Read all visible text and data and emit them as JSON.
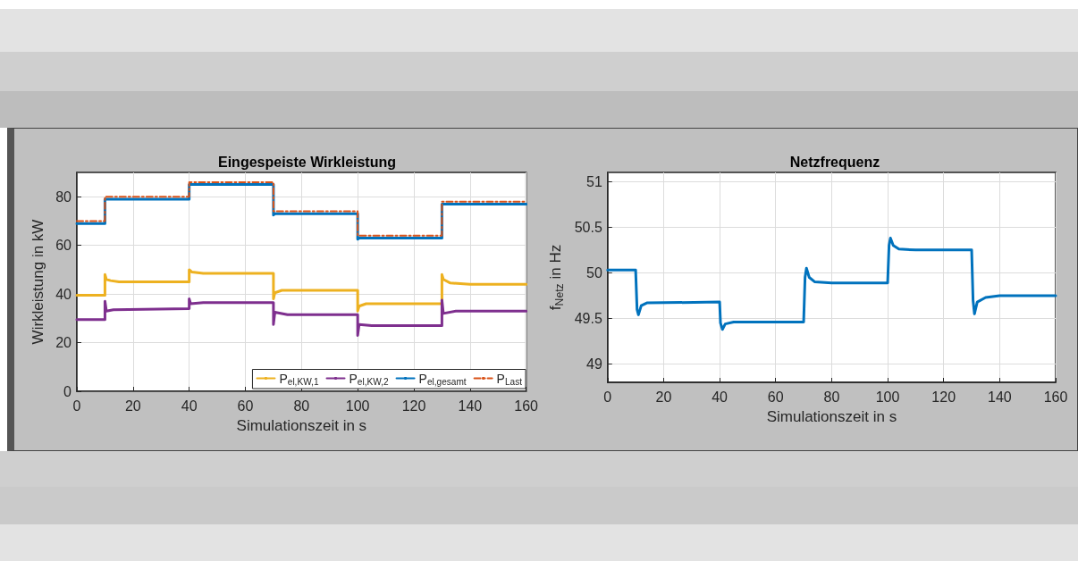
{
  "chart_data": [
    {
      "type": "line",
      "title": "Eingespeiste Wirkleistung",
      "xlabel": "Simulationszeit in s",
      "ylabel": "Wirkleistung in kW",
      "xlim": [
        0,
        160
      ],
      "xticks": [
        0,
        20,
        40,
        60,
        80,
        100,
        120,
        140,
        160
      ],
      "ylim": [
        0,
        90
      ],
      "yticks": [
        0,
        20,
        40,
        60,
        80
      ],
      "grid": true,
      "legend": "bottom right",
      "marker": "none",
      "series": [
        {
          "name": "P$_{el,KW,1}$",
          "color": "#edb120",
          "line_style": "solid",
          "x": [
            0,
            10,
            10,
            10.5,
            12,
            15,
            40,
            40,
            41,
            45,
            70,
            70,
            70.5,
            73,
            100,
            100,
            100.5,
            103,
            130,
            130,
            130.5,
            133,
            140,
            160
          ],
          "values": [
            39.5,
            39.5,
            48,
            46,
            45.5,
            45,
            45,
            50,
            49,
            48.5,
            48.5,
            38,
            40.5,
            41.5,
            41.5,
            33,
            35,
            36,
            36,
            48,
            46,
            44.5,
            44,
            44
          ]
        },
        {
          "name": "P$_{el,KW,2}$",
          "color": "#7e2f8e",
          "line_style": "solid",
          "x": [
            0,
            10,
            10,
            10.5,
            13,
            40,
            40,
            40.5,
            45,
            70,
            70,
            70.5,
            75,
            100,
            100,
            100.5,
            105,
            130,
            130,
            130.5,
            135,
            160
          ],
          "values": [
            29.5,
            29.5,
            37,
            33,
            33.5,
            34,
            38,
            36,
            36.5,
            36.5,
            27.5,
            32.5,
            31.5,
            31.5,
            23,
            27.5,
            27,
            27,
            37.5,
            32,
            33,
            33
          ]
        },
        {
          "name": "P$_{el,gesamt}$",
          "color": "#0072bd",
          "line_style": "solid",
          "x": [
            0,
            10,
            10,
            40,
            40,
            70,
            70,
            70.5,
            100,
            100,
            100.5,
            130,
            130,
            160
          ],
          "values": [
            69,
            69,
            79,
            79,
            85,
            85,
            72.5,
            73,
            73,
            62.5,
            63,
            63,
            77,
            77
          ]
        },
        {
          "name": "P$_{Last}$",
          "color": "#d95319",
          "line_style": "dashed",
          "x": [
            0,
            10,
            10,
            40,
            40,
            70,
            70,
            100,
            100,
            130,
            130,
            160
          ],
          "values": [
            70,
            70,
            80,
            80,
            86,
            86,
            74,
            74,
            64,
            64,
            78,
            78
          ]
        }
      ]
    },
    {
      "type": "line",
      "title": "Netzfrequenz",
      "xlabel": "Simulationszeit in s",
      "ylabel": "f$_{Netz}$ in Hz",
      "xlim": [
        0,
        160
      ],
      "xticks": [
        0,
        20,
        40,
        60,
        80,
        100,
        120,
        140,
        160
      ],
      "ylim": [
        48.8,
        51.1
      ],
      "yticks": [
        49,
        49.5,
        50,
        50.5,
        51
      ],
      "grid": true,
      "marker": "none",
      "series": [
        {
          "color": "#0072bd",
          "line_style": "solid",
          "x": [
            0,
            10,
            10.5,
            11,
            12,
            14,
            40,
            40.3,
            41,
            42,
            45,
            70,
            70.5,
            71,
            72,
            74,
            80,
            100,
            100.5,
            101,
            102,
            104,
            110,
            130,
            130.5,
            131,
            132,
            135,
            140,
            160
          ],
          "values": [
            50.03,
            50.03,
            49.6,
            49.54,
            49.64,
            49.67,
            49.68,
            49.45,
            49.38,
            49.44,
            49.46,
            49.46,
            49.95,
            50.05,
            49.95,
            49.9,
            49.89,
            49.89,
            50.3,
            50.38,
            50.3,
            50.26,
            50.25,
            50.25,
            49.7,
            49.55,
            49.68,
            49.73,
            49.75,
            49.75
          ]
        }
      ]
    }
  ]
}
